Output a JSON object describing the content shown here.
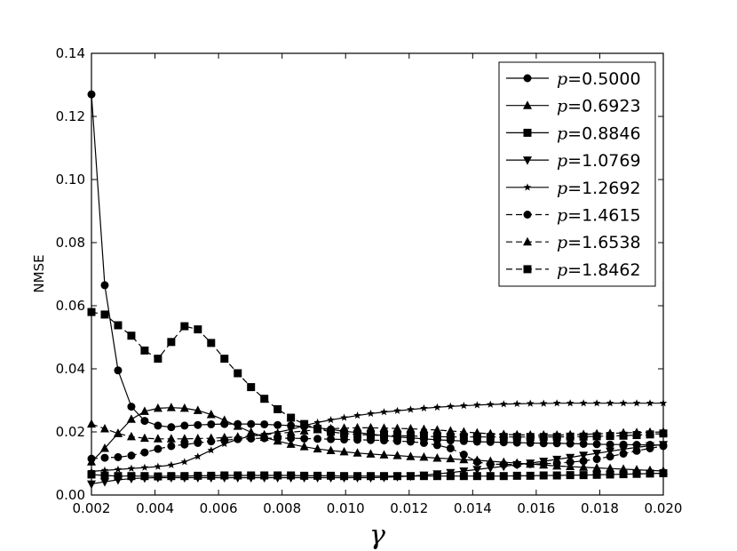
{
  "chart_data": {
    "type": "line",
    "xlabel": "γ",
    "ylabel": "NMSE",
    "xlim": [
      0.002,
      0.02
    ],
    "ylim": [
      0,
      0.14
    ],
    "xticks": [
      "0.002",
      "0.004",
      "0.006",
      "0.008",
      "0.010",
      "0.012",
      "0.014",
      "0.016",
      "0.018",
      "0.020"
    ],
    "yticks": [
      "0.00",
      "0.02",
      "0.04",
      "0.06",
      "0.08",
      "0.10",
      "0.12",
      "0.14"
    ],
    "grid": false,
    "legend_position": "top-right",
    "x": [
      0.002,
      0.0024186,
      0.0028372,
      0.0032558,
      0.0036744,
      0.004093,
      0.0045116,
      0.0049302,
      0.0053488,
      0.0057674,
      0.006186,
      0.0066047,
      0.0070233,
      0.0074419,
      0.0078605,
      0.0082791,
      0.0086977,
      0.0091163,
      0.0095349,
      0.0099535,
      0.0103721,
      0.0107907,
      0.0112093,
      0.0116279,
      0.0120465,
      0.0124651,
      0.0128837,
      0.0133023,
      0.0137209,
      0.0141395,
      0.0145581,
      0.0149767,
      0.0153953,
      0.015814,
      0.0162326,
      0.0166512,
      0.0170698,
      0.0174884,
      0.017907,
      0.0183256,
      0.0187442,
      0.0191628,
      0.0195814,
      0.02
    ],
    "series": [
      {
        "name": "p=0.5000",
        "marker": "circle",
        "dash": false,
        "values": [
          0.127,
          0.0665,
          0.0395,
          0.028,
          0.0235,
          0.022,
          0.0215,
          0.022,
          0.0222,
          0.0224,
          0.0225,
          0.0225,
          0.0225,
          0.0224,
          0.0222,
          0.022,
          0.0217,
          0.0213,
          0.0208,
          0.0202,
          0.0198,
          0.0193,
          0.0188,
          0.0184,
          0.0181,
          0.0178,
          0.0175,
          0.0173,
          0.0171,
          0.0169,
          0.0168,
          0.0167,
          0.0166,
          0.0165,
          0.0164,
          0.0164,
          0.0163,
          0.0162,
          0.0161,
          0.016,
          0.016,
          0.0159,
          0.0159,
          0.0158
        ]
      },
      {
        "name": "p=0.6923",
        "marker": "triangle-up",
        "dash": false,
        "values": [
          0.0105,
          0.0148,
          0.0195,
          0.024,
          0.0265,
          0.0275,
          0.0277,
          0.0275,
          0.0268,
          0.0255,
          0.0237,
          0.0218,
          0.0199,
          0.0183,
          0.0171,
          0.0161,
          0.0153,
          0.0146,
          0.0141,
          0.0137,
          0.0133,
          0.013,
          0.0127,
          0.0125,
          0.0122,
          0.012,
          0.0117,
          0.0115,
          0.0112,
          0.011,
          0.0107,
          0.0104,
          0.0101,
          0.0098,
          0.0095,
          0.0092,
          0.009,
          0.0088,
          0.0086,
          0.0084,
          0.0082,
          0.008,
          0.0078,
          0.0076
        ]
      },
      {
        "name": "p=0.8846",
        "marker": "square",
        "dash": false,
        "values": [
          0.0065,
          0.0062,
          0.006,
          0.006,
          0.006,
          0.0059,
          0.006,
          0.006,
          0.0061,
          0.0061,
          0.0062,
          0.0062,
          0.0062,
          0.0062,
          0.0062,
          0.0062,
          0.0061,
          0.0061,
          0.0061,
          0.006,
          0.006,
          0.006,
          0.006,
          0.006,
          0.006,
          0.006,
          0.006,
          0.006,
          0.006,
          0.006,
          0.006,
          0.006,
          0.0061,
          0.0061,
          0.0062,
          0.0062,
          0.0063,
          0.0063,
          0.0064,
          0.0065,
          0.0066,
          0.0067,
          0.0068,
          0.0069
        ]
      },
      {
        "name": "p=1.0769",
        "marker": "triangle-down",
        "dash": false,
        "values": [
          0.0035,
          0.0042,
          0.0048,
          0.0052,
          0.0054,
          0.0055,
          0.0055,
          0.0055,
          0.0055,
          0.0055,
          0.0055,
          0.0055,
          0.0055,
          0.0055,
          0.0055,
          0.0055,
          0.0055,
          0.0055,
          0.0055,
          0.0055,
          0.0055,
          0.0055,
          0.0056,
          0.0058,
          0.006,
          0.0063,
          0.0067,
          0.0071,
          0.0076,
          0.0081,
          0.0086,
          0.0091,
          0.0096,
          0.0101,
          0.0107,
          0.0113,
          0.0119,
          0.0126,
          0.0132,
          0.0139,
          0.0145,
          0.0151,
          0.0156,
          0.016
        ]
      },
      {
        "name": "p=1.2692",
        "marker": "star",
        "dash": false,
        "values": [
          0.0075,
          0.0078,
          0.0081,
          0.0084,
          0.0087,
          0.009,
          0.0095,
          0.0105,
          0.0122,
          0.0142,
          0.0162,
          0.0177,
          0.0187,
          0.0193,
          0.0199,
          0.0208,
          0.022,
          0.023,
          0.0238,
          0.0245,
          0.0252,
          0.0258,
          0.0263,
          0.0267,
          0.0271,
          0.0275,
          0.0278,
          0.0281,
          0.0283,
          0.0285,
          0.0287,
          0.0288,
          0.0289,
          0.029,
          0.029,
          0.0291,
          0.0291,
          0.0291,
          0.0291,
          0.0291,
          0.0291,
          0.0291,
          0.0291,
          0.0291
        ]
      },
      {
        "name": "p=1.4615",
        "marker": "circle",
        "dash": true,
        "values": [
          0.0115,
          0.0118,
          0.012,
          0.0125,
          0.0135,
          0.0146,
          0.0155,
          0.016,
          0.0165,
          0.017,
          0.0174,
          0.0177,
          0.0179,
          0.018,
          0.018,
          0.018,
          0.0179,
          0.0178,
          0.0177,
          0.0176,
          0.0175,
          0.0174,
          0.0173,
          0.0171,
          0.0169,
          0.0165,
          0.0158,
          0.0148,
          0.0128,
          0.0105,
          0.0098,
          0.0097,
          0.0097,
          0.0098,
          0.0099,
          0.0101,
          0.0104,
          0.0108,
          0.0114,
          0.0122,
          0.0131,
          0.014,
          0.0148,
          0.0155
        ]
      },
      {
        "name": "p=1.6538",
        "marker": "triangle-up",
        "dash": true,
        "values": [
          0.0225,
          0.021,
          0.0195,
          0.0185,
          0.018,
          0.0178,
          0.0178,
          0.0178,
          0.0179,
          0.018,
          0.0182,
          0.0184,
          0.0187,
          0.0191,
          0.0195,
          0.0199,
          0.0203,
          0.0207,
          0.021,
          0.0212,
          0.0213,
          0.0213,
          0.0212,
          0.0211,
          0.021,
          0.0208,
          0.0206,
          0.0203,
          0.02,
          0.0197,
          0.0194,
          0.0192,
          0.0191,
          0.019,
          0.019,
          0.019,
          0.0191,
          0.0192,
          0.0194,
          0.0195,
          0.0197,
          0.0198,
          0.0199,
          0.02
        ]
      },
      {
        "name": "p=1.8462",
        "marker": "square",
        "dash": true,
        "values": [
          0.058,
          0.0572,
          0.0538,
          0.0505,
          0.0458,
          0.0432,
          0.0485,
          0.0535,
          0.0525,
          0.0482,
          0.0432,
          0.0386,
          0.0342,
          0.0305,
          0.0272,
          0.0245,
          0.0225,
          0.021,
          0.02,
          0.0195,
          0.0192,
          0.019,
          0.0189,
          0.0188,
          0.0187,
          0.0186,
          0.0185,
          0.0184,
          0.0184,
          0.0184,
          0.0184,
          0.0184,
          0.0184,
          0.0184,
          0.0184,
          0.0184,
          0.0185,
          0.0185,
          0.0186,
          0.0187,
          0.0188,
          0.019,
          0.0192,
          0.0195
        ]
      }
    ]
  }
}
